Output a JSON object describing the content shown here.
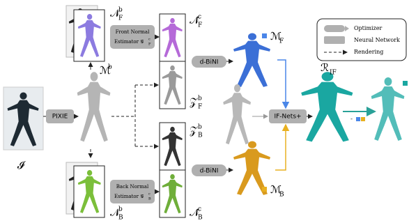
{
  "input": {
    "label": "𝓘"
  },
  "pixie": "PIXIE",
  "smpl_mesh": {
    "base": "ℳ",
    "sup": "b"
  },
  "front_normal_smpl": {
    "base": "𝒩",
    "sub": "F",
    "sup": "b"
  },
  "back_normal_smpl": {
    "base": "𝒩",
    "sub": "B",
    "sup": "b"
  },
  "front_estimator": {
    "line1": "Front Normal",
    "line2": "Estimator",
    "base": "𝒢",
    "sub": "F",
    "sup": "c"
  },
  "back_estimator": {
    "line1": "Back Normal",
    "line2": "Estimator",
    "base": "𝒢",
    "sub": "B",
    "sup": "c"
  },
  "front_normal_pred": {
    "base": "𝒩̂",
    "sub": "F",
    "sup": "c"
  },
  "back_normal_pred": {
    "base": "𝒩̂",
    "sub": "B",
    "sup": "c"
  },
  "front_depth": {
    "base": "𝒵",
    "sub": "F",
    "sup": "b"
  },
  "back_depth": {
    "base": "𝒵",
    "sub": "B",
    "sup": "b"
  },
  "dbini_top": "d-BiNI",
  "dbini_bottom": "d-BiNI",
  "front_mesh": {
    "base": "ℳ",
    "sub": "F"
  },
  "back_mesh": {
    "base": "ℳ",
    "sub": "B"
  },
  "ifnets": "IF-Nets+",
  "result": {
    "base": "ℛ",
    "sub": "IF"
  },
  "legend": {
    "optimizer": "Optimizer",
    "network": "Neural Network",
    "rendering": "Rendering"
  }
}
